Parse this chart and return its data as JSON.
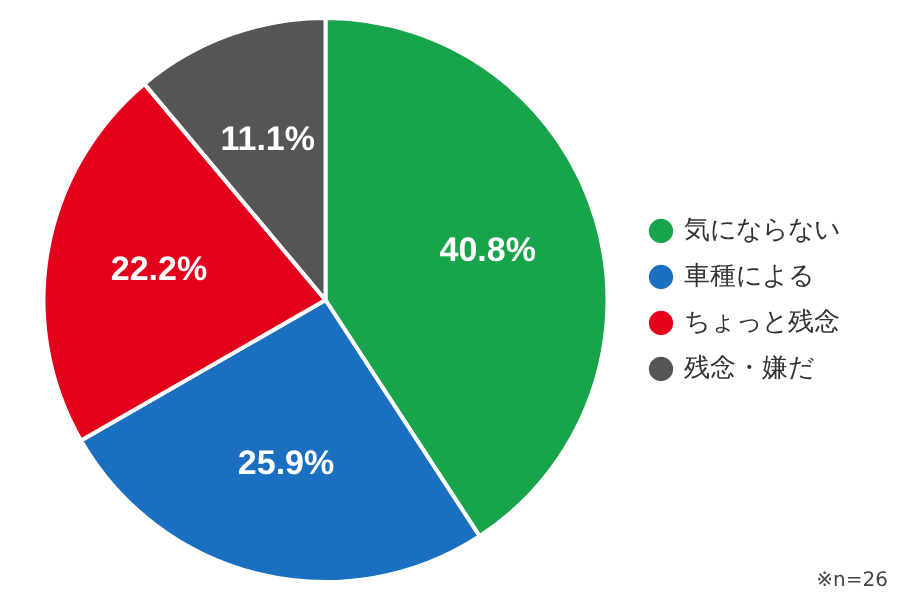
{
  "chart_data": {
    "type": "pie",
    "categories": [
      "気にならない",
      "車種による",
      "ちょっと残念",
      "残念・嫌だ"
    ],
    "values": [
      40.8,
      25.9,
      22.2,
      11.1
    ],
    "colors": [
      "#17a44a",
      "#1a6fc0",
      "#e2001a",
      "#555555"
    ],
    "value_labels": [
      "40.8%",
      "25.9%",
      "22.2%",
      "11.1%"
    ],
    "legend": "right",
    "annotations": [
      "※n=26"
    ]
  }
}
